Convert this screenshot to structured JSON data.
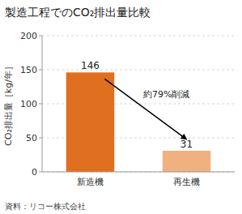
{
  "chart_data": {
    "type": "bar",
    "title": "製造工程でのCO₂排出量比較",
    "categories": [
      "新造機",
      "再生機"
    ],
    "values": [
      146,
      31
    ],
    "colors": [
      "#E07020",
      "#F0B080"
    ],
    "y_label": "CO₂排出量［kg/年］",
    "ylim": [
      0,
      200
    ],
    "yticks": [
      0,
      50,
      100,
      150,
      200
    ],
    "annotation": "約79%削減",
    "source": "資料：リコー株式会社",
    "grid": true,
    "data_labels": true
  }
}
